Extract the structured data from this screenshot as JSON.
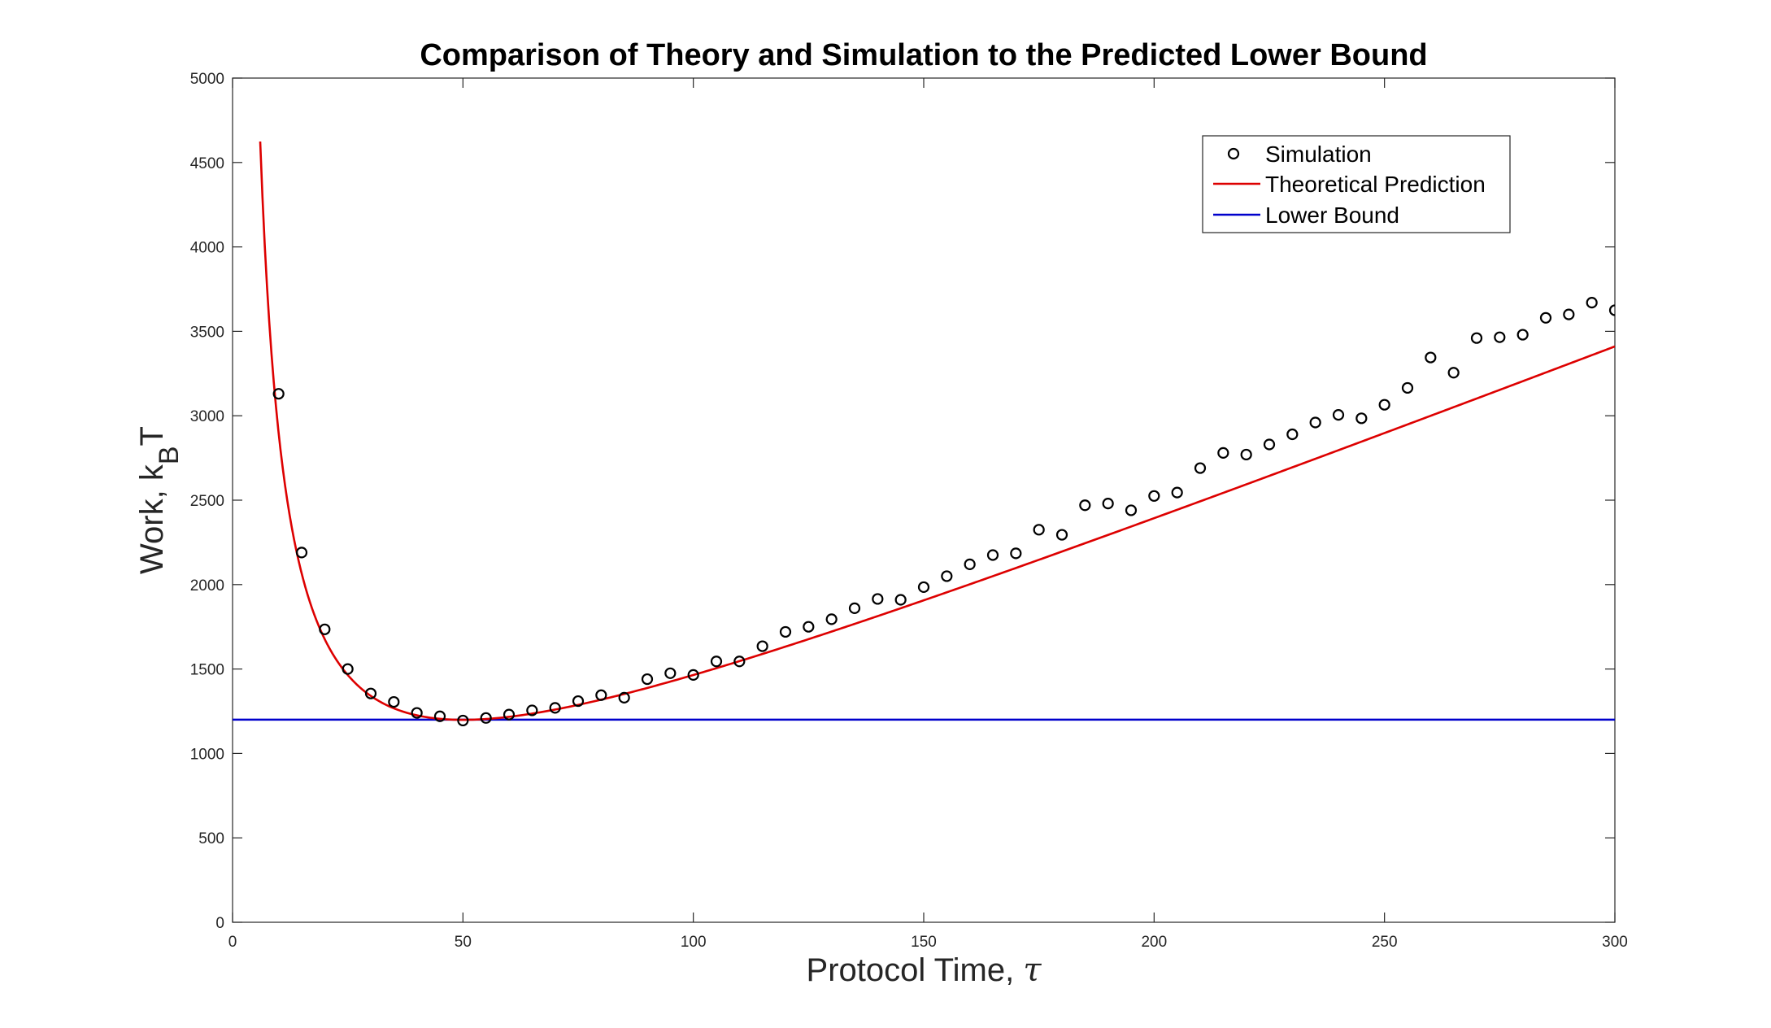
{
  "chart_data": {
    "type": "line",
    "title": "Comparison of Theory and Simulation to the Predicted Lower Bound",
    "xlabel": "Protocol Time,",
    "xlabel_symbol": "τ",
    "ylabel": "Work, k",
    "ylabel_sub": "B",
    "ylabel_tail": "T",
    "xlim": [
      0,
      300
    ],
    "ylim": [
      0,
      5000
    ],
    "xticks": [
      0,
      50,
      100,
      150,
      200,
      250,
      300
    ],
    "yticks": [
      0,
      500,
      1000,
      1500,
      2000,
      2500,
      3000,
      3500,
      4000,
      4500,
      5000
    ],
    "grid": false,
    "legend_position": "top-right",
    "legend": [
      "Simulation",
      "Theoretical Prediction",
      "Lower Bound"
    ],
    "series": [
      {
        "name": "Simulation",
        "type": "scatter",
        "color": "#000000",
        "x": [
          10,
          15,
          20,
          25,
          30,
          35,
          40,
          45,
          50,
          55,
          60,
          65,
          70,
          75,
          80,
          85,
          90,
          95,
          100,
          105,
          110,
          115,
          120,
          125,
          130,
          135,
          140,
          145,
          150,
          155,
          160,
          165,
          170,
          175,
          180,
          185,
          190,
          195,
          200,
          205,
          210,
          215,
          220,
          225,
          230,
          235,
          240,
          245,
          250,
          255,
          260,
          265,
          270,
          275,
          280,
          285,
          290,
          295,
          300
        ],
        "y": [
          3130,
          2190,
          1735,
          1500,
          1355,
          1305,
          1240,
          1220,
          1195,
          1210,
          1230,
          1255,
          1270,
          1310,
          1345,
          1330,
          1440,
          1475,
          1465,
          1545,
          1545,
          1635,
          1720,
          1750,
          1795,
          1860,
          1915,
          1910,
          1985,
          2050,
          2120,
          2175,
          2185,
          2325,
          2295,
          2470,
          2480,
          2440,
          2525,
          2545,
          2690,
          2780,
          2770,
          2830,
          2890,
          2960,
          3005,
          2985,
          3065,
          3165,
          3345,
          3255,
          3460,
          3465,
          3480,
          3580,
          3600,
          3670,
          3625
        ]
      },
      {
        "name": "Theoretical Prediction",
        "type": "line",
        "color": "#dd0000",
        "model": "W = a*tau + b + c/tau",
        "a": 10.615,
        "b": 137.6,
        "c": 26538
      },
      {
        "name": "Lower Bound",
        "type": "line",
        "color": "#0000cc",
        "y": 1200
      }
    ]
  }
}
